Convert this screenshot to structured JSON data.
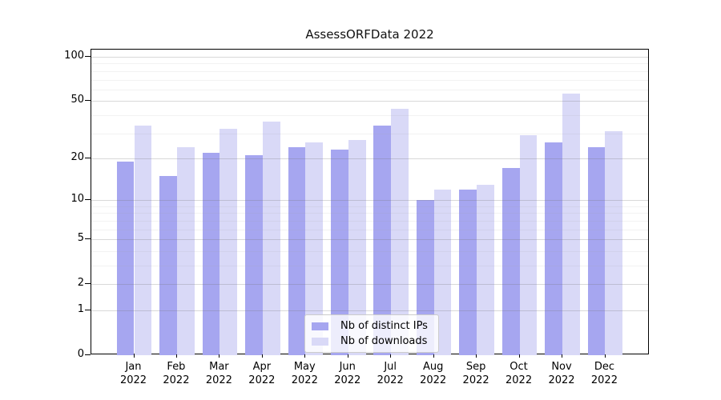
{
  "chart_data": {
    "type": "bar",
    "title": "AssessORFData 2022",
    "categories": [
      "Jan 2022",
      "Feb 2022",
      "Mar 2022",
      "Apr 2022",
      "May 2022",
      "Jun 2022",
      "Jul 2022",
      "Aug 2022",
      "Sep 2022",
      "Oct 2022",
      "Nov 2022",
      "Dec 2022"
    ],
    "series": [
      {
        "name": "Nb of distinct IPs",
        "key": "distinct-ips",
        "color": "#a6a6f0",
        "values": [
          19,
          15,
          22,
          21,
          24,
          23,
          34,
          10,
          12,
          17,
          26,
          24
        ]
      },
      {
        "name": "Nb of downloads",
        "key": "downloads",
        "color": "#d9d9f7",
        "values": [
          34,
          24,
          32,
          36,
          26,
          27,
          44,
          12,
          13,
          29,
          56,
          31
        ]
      }
    ],
    "yscale": "log1p",
    "ylim": [
      0,
      111
    ],
    "yticks": [
      0,
      1,
      2,
      5,
      10,
      20,
      50,
      100
    ],
    "minor_gridlines": [
      3,
      4,
      6,
      7,
      8,
      9,
      30,
      40,
      60,
      70,
      80,
      90
    ],
    "grid": "horizontal",
    "legend_position": "lower center"
  }
}
